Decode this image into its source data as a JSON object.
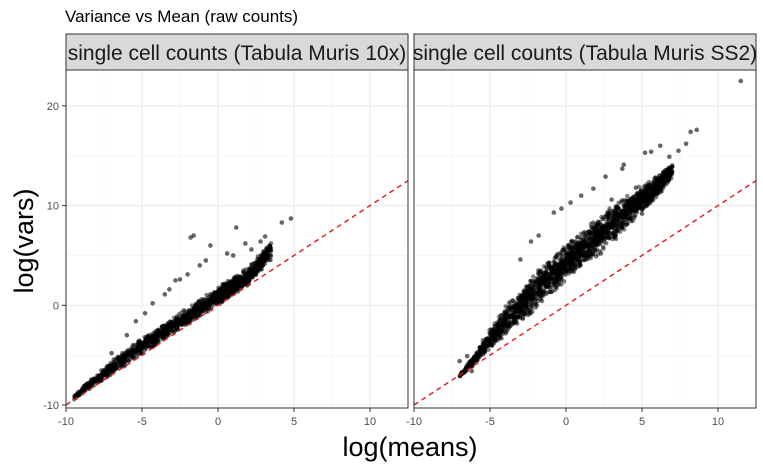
{
  "chart_data": {
    "type": "scatter",
    "title": "Variance vs Mean (raw counts)",
    "xlabel": "log(means)",
    "ylabel": "log(vars)",
    "xlim": [
      -10,
      12.5
    ],
    "ylim": [
      -10.3,
      23.6
    ],
    "x_ticks": [
      -10,
      -5,
      0,
      5,
      10
    ],
    "y_ticks": [
      -10,
      0,
      10,
      20
    ],
    "reference_line": {
      "slope": 1,
      "intercept": 0,
      "color": "#e31a1c",
      "style": "dashed"
    },
    "point_color": "#000000",
    "grid": true,
    "facets": [
      {
        "name": "single cell counts (Tabula Muris 10x)",
        "series": [
          {
            "band": [
              {
                "x": -9.5,
                "low": -9.5,
                "high": -9.0
              },
              {
                "x": -8.0,
                "low": -8.0,
                "high": -6.8
              },
              {
                "x": -6.0,
                "low": -6.0,
                "high": -4.3
              },
              {
                "x": -4.0,
                "low": -4.0,
                "high": -2.2
              },
              {
                "x": -2.0,
                "low": -2.0,
                "high": -0.2
              },
              {
                "x": 0.0,
                "low": -0.1,
                "high": 1.9
              },
              {
                "x": 2.0,
                "low": 2.0,
                "high": 3.9
              },
              {
                "x": 3.5,
                "low": 4.5,
                "high": 6.5
              }
            ],
            "outliers": [
              {
                "x": 1.2,
                "y": 7.8
              },
              {
                "x": -1.6,
                "y": 7.0
              },
              {
                "x": -1.8,
                "y": 6.8
              },
              {
                "x": 4.8,
                "y": 8.7
              },
              {
                "x": 4.2,
                "y": 8.3
              },
              {
                "x": 1.8,
                "y": 6.2
              },
              {
                "x": 2.8,
                "y": 6.4
              },
              {
                "x": -0.5,
                "y": 6.0
              },
              {
                "x": 3.1,
                "y": 6.9
              },
              {
                "x": -2.8,
                "y": 2.5
              },
              {
                "x": -2.5,
                "y": 2.6
              },
              {
                "x": -3.2,
                "y": 1.6
              },
              {
                "x": -5.4,
                "y": -1.6
              },
              {
                "x": -4.3,
                "y": 0.2
              },
              {
                "x": -3.5,
                "y": 1.1
              },
              {
                "x": -1.2,
                "y": 4.0
              },
              {
                "x": -0.8,
                "y": 4.5
              },
              {
                "x": 0.6,
                "y": 5.2
              },
              {
                "x": -6.0,
                "y": -3.0
              },
              {
                "x": -7.0,
                "y": -4.8
              },
              {
                "x": -4.8,
                "y": -0.8
              },
              {
                "x": 1.0,
                "y": 5.0
              },
              {
                "x": 2.2,
                "y": 5.6
              },
              {
                "x": -2.0,
                "y": 3.1
              }
            ]
          }
        ]
      },
      {
        "name": "single cell counts (Tabula Muris SS2)",
        "series": [
          {
            "band": [
              {
                "x": -7.0,
                "low": -7.2,
                "high": -7.0
              },
              {
                "x": -6.0,
                "low": -6.0,
                "high": -4.8
              },
              {
                "x": -5.0,
                "low": -4.6,
                "high": -2.3
              },
              {
                "x": -4.0,
                "low": -3.2,
                "high": 0.0
              },
              {
                "x": -2.0,
                "low": -0.6,
                "high": 3.3
              },
              {
                "x": 0.0,
                "low": 2.3,
                "high": 6.3
              },
              {
                "x": 2.0,
                "low": 4.9,
                "high": 8.8
              },
              {
                "x": 4.0,
                "low": 7.5,
                "high": 11.2
              },
              {
                "x": 5.5,
                "low": 10.0,
                "high": 12.6
              },
              {
                "x": 7.0,
                "low": 12.6,
                "high": 14.2
              }
            ],
            "outliers": [
              {
                "x": 11.5,
                "y": 22.5
              },
              {
                "x": 8.6,
                "y": 17.6
              },
              {
                "x": 8.2,
                "y": 17.4
              },
              {
                "x": 7.9,
                "y": 16.2
              },
              {
                "x": 7.4,
                "y": 15.5
              },
              {
                "x": 5.6,
                "y": 15.4
              },
              {
                "x": 5.2,
                "y": 15.3
              },
              {
                "x": 3.8,
                "y": 14.1
              },
              {
                "x": 3.7,
                "y": 13.7
              },
              {
                "x": 2.6,
                "y": 12.9
              },
              {
                "x": 1.8,
                "y": 11.7
              },
              {
                "x": 1.0,
                "y": 11.0
              },
              {
                "x": 0.3,
                "y": 10.3
              },
              {
                "x": -0.3,
                "y": 9.7
              },
              {
                "x": -0.8,
                "y": 9.3
              },
              {
                "x": 6.8,
                "y": 14.9
              },
              {
                "x": 6.2,
                "y": 16.0
              },
              {
                "x": -1.8,
                "y": 7.0
              },
              {
                "x": -2.3,
                "y": 6.4
              },
              {
                "x": 0.9,
                "y": 4.0
              },
              {
                "x": 1.4,
                "y": 4.9
              },
              {
                "x": 2.3,
                "y": 5.2
              },
              {
                "x": 3.2,
                "y": 6.9
              },
              {
                "x": 5.0,
                "y": 9.2
              },
              {
                "x": -6.5,
                "y": -5.1
              },
              {
                "x": -7.0,
                "y": -5.6
              },
              {
                "x": -6.2,
                "y": -6.6
              },
              {
                "x": 4.6,
                "y": 11.8
              },
              {
                "x": 3.0,
                "y": 10.6
              },
              {
                "x": -3.0,
                "y": 4.6
              }
            ]
          }
        ]
      }
    ]
  }
}
